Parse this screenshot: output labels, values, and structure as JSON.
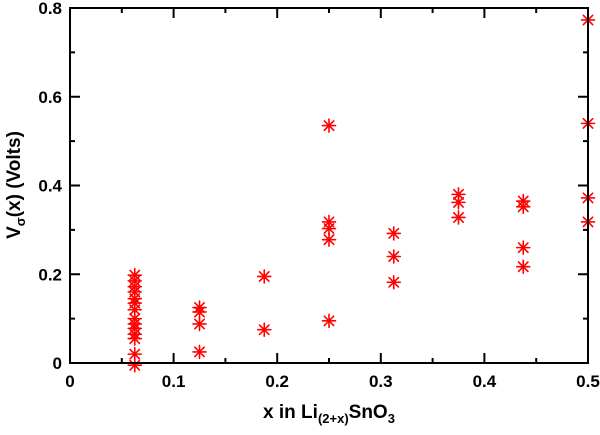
{
  "chart_data": {
    "type": "scatter",
    "xlabel": {
      "prefix": "x in Li",
      "sub": "(2+x)",
      "mid": "SnO",
      "sub2": "3"
    },
    "ylabel": {
      "prefix": "V",
      "sub": "σ",
      "suffix": "(x)  (Volts)"
    },
    "xlim": [
      0,
      0.5
    ],
    "ylim": [
      0,
      0.8
    ],
    "xticks": [
      0,
      0.1,
      0.2,
      0.3,
      0.4,
      0.5
    ],
    "xtick_labels": [
      "0",
      "0.1",
      "0.2",
      "0.3",
      "0.4",
      "0.5"
    ],
    "yticks": [
      0,
      0.2,
      0.4,
      0.6,
      0.8
    ],
    "ytick_labels": [
      "0",
      "0.2",
      "0.4",
      "0.6",
      "0.8"
    ],
    "grid": false,
    "marker": "asterisk",
    "marker_color": "#ff0000",
    "series": [
      {
        "points": [
          [
            0.0625,
            0.198
          ],
          [
            0.0625,
            0.185
          ],
          [
            0.0625,
            0.172
          ],
          [
            0.0625,
            0.16
          ],
          [
            0.0625,
            0.145
          ],
          [
            0.0625,
            0.135
          ],
          [
            0.0625,
            0.12
          ],
          [
            0.0625,
            0.1
          ],
          [
            0.0625,
            0.088
          ],
          [
            0.0625,
            0.078
          ],
          [
            0.0625,
            0.065
          ],
          [
            0.0625,
            0.055
          ],
          [
            0.0625,
            0.02
          ],
          [
            0.0625,
            -0.005
          ],
          [
            0.125,
            0.125
          ],
          [
            0.125,
            0.115
          ],
          [
            0.125,
            0.088
          ],
          [
            0.125,
            0.025
          ],
          [
            0.1875,
            0.195
          ],
          [
            0.1875,
            0.075
          ],
          [
            0.25,
            0.535
          ],
          [
            0.25,
            0.318
          ],
          [
            0.25,
            0.303
          ],
          [
            0.25,
            0.278
          ],
          [
            0.25,
            0.095
          ],
          [
            0.3125,
            0.292
          ],
          [
            0.3125,
            0.24
          ],
          [
            0.3125,
            0.182
          ],
          [
            0.375,
            0.38
          ],
          [
            0.375,
            0.362
          ],
          [
            0.375,
            0.328
          ],
          [
            0.4375,
            0.365
          ],
          [
            0.4375,
            0.352
          ],
          [
            0.4375,
            0.26
          ],
          [
            0.4375,
            0.217
          ],
          [
            0.5,
            0.773
          ],
          [
            0.5,
            0.54
          ],
          [
            0.5,
            0.372
          ],
          [
            0.5,
            0.318
          ]
        ]
      }
    ]
  }
}
